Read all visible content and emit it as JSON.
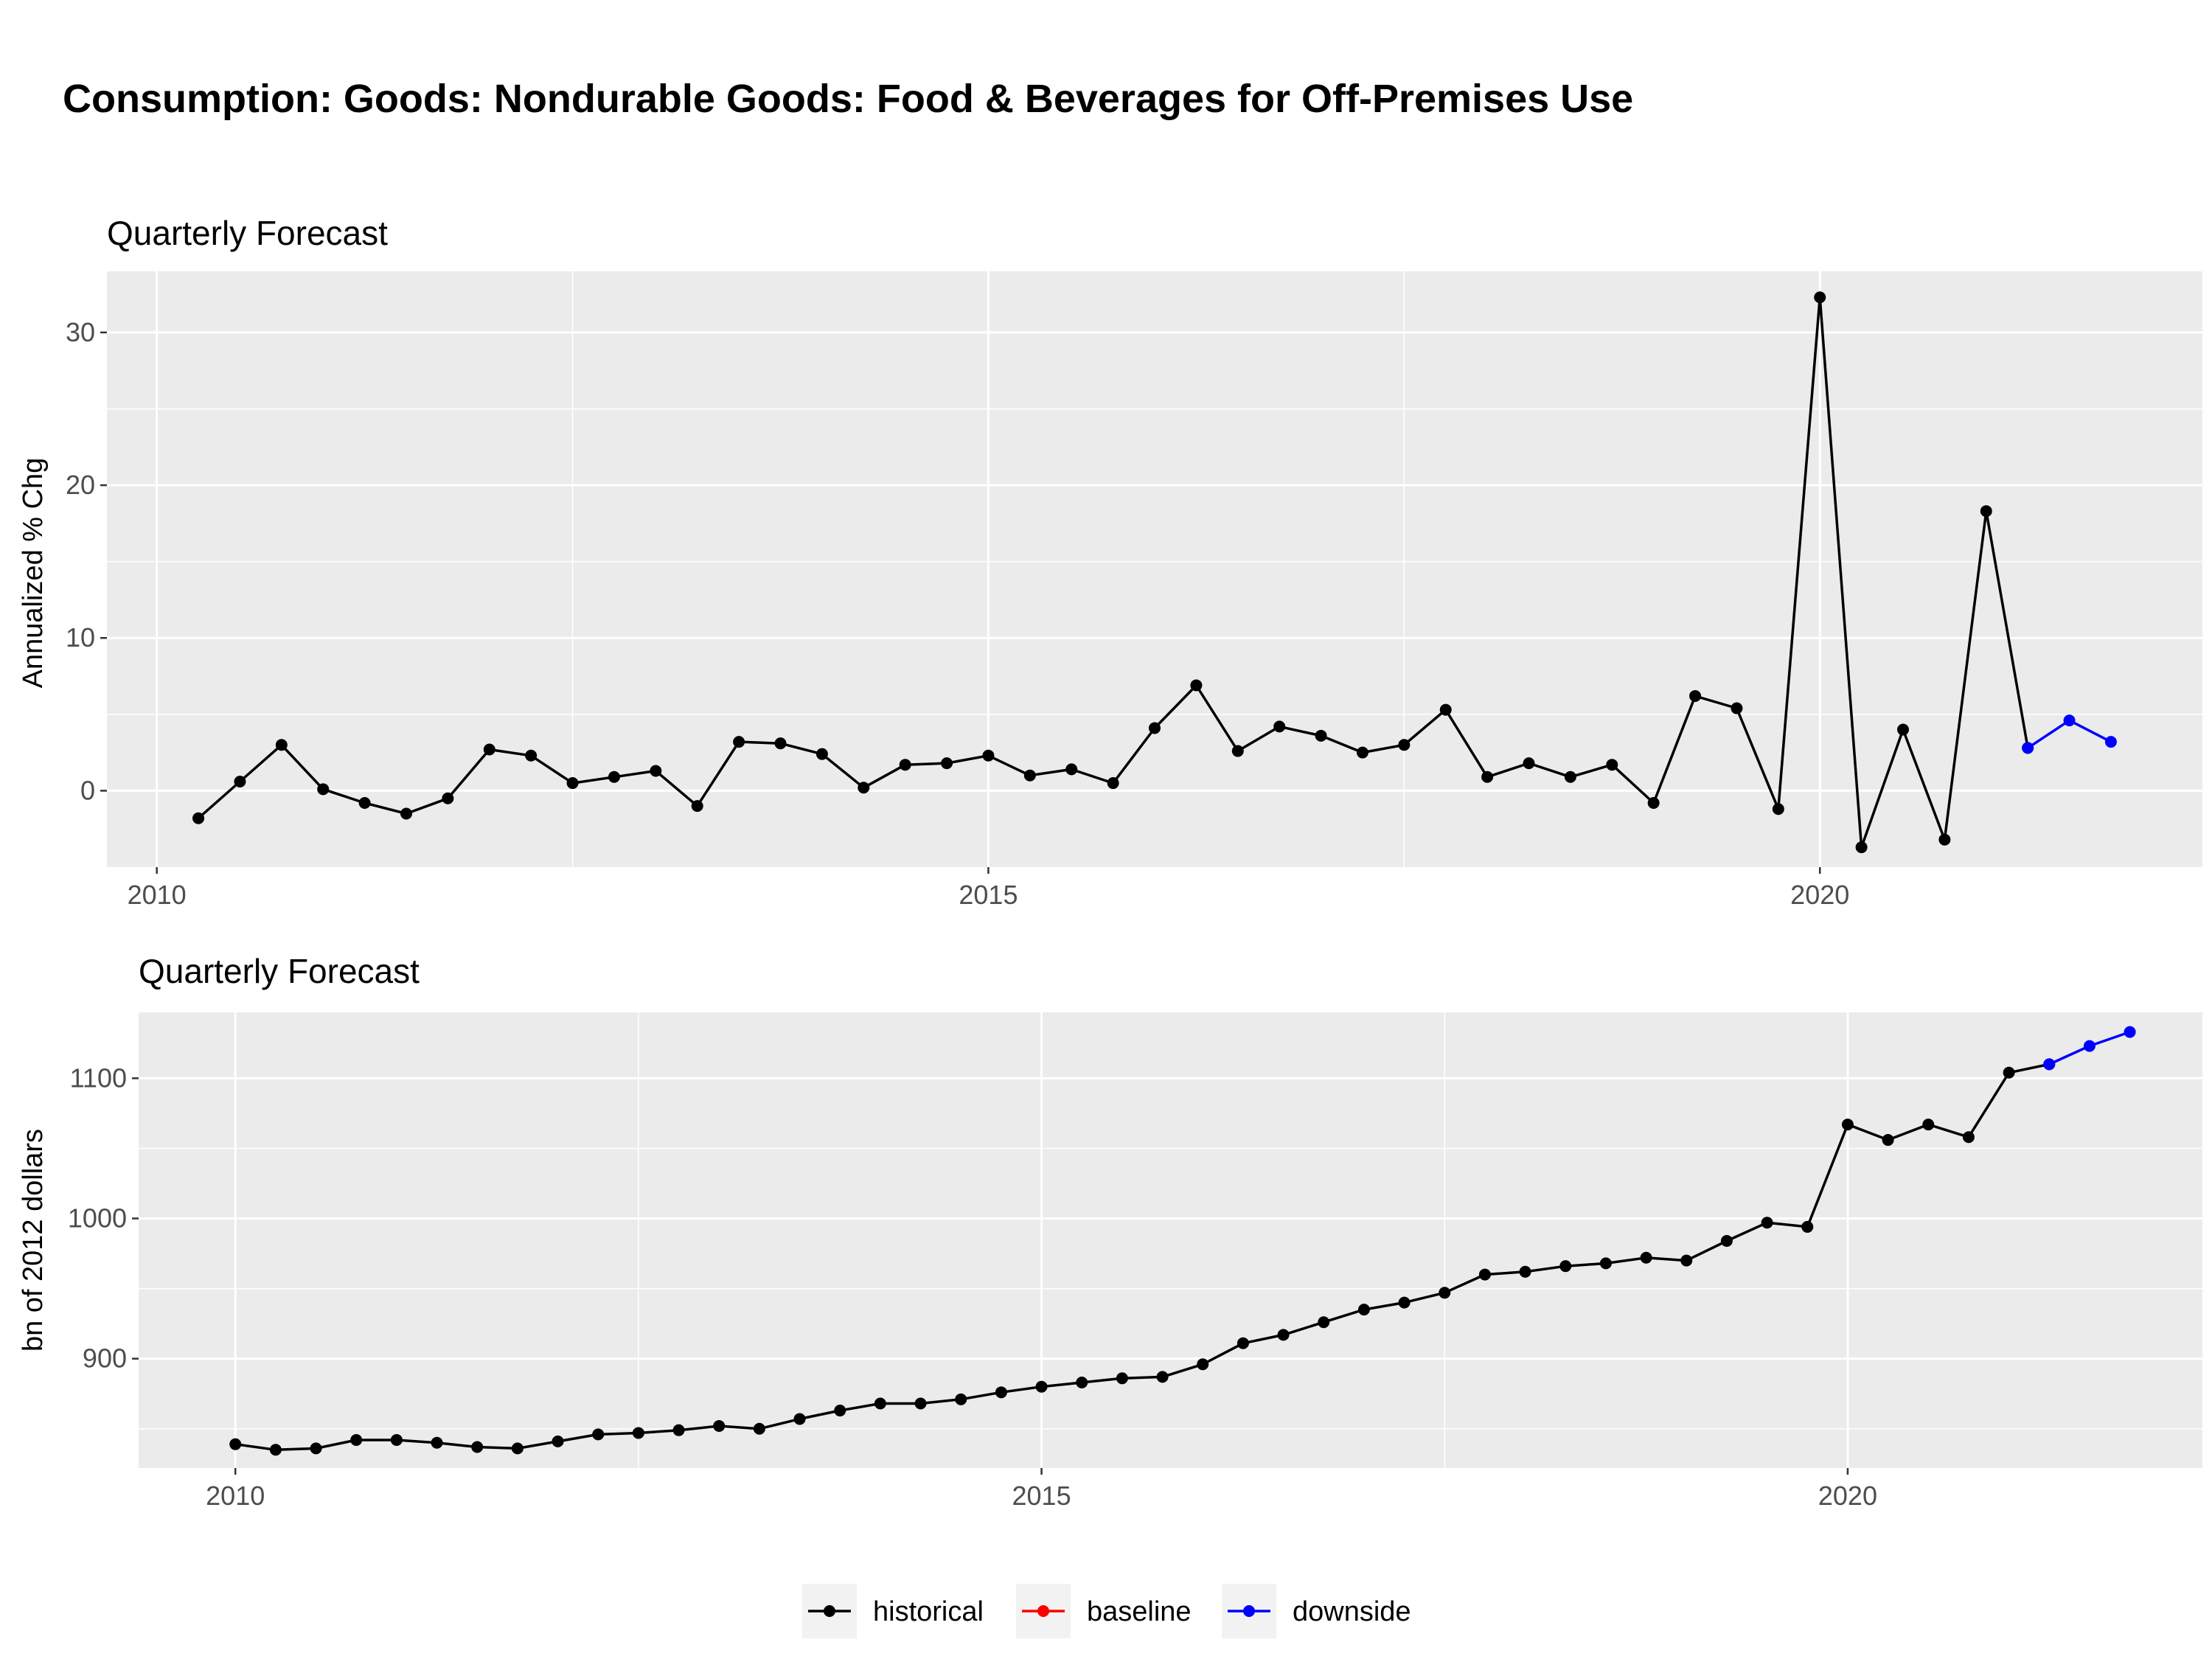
{
  "title": "Consumption: Goods: Nondurable Goods: Food & Beverages for Off-Premises Use",
  "legend": {
    "items": [
      {
        "label": "historical",
        "color": "#000000"
      },
      {
        "label": "baseline",
        "color": "#ff0000"
      },
      {
        "label": "downside",
        "color": "#0000ff"
      }
    ],
    "position": "bottom"
  },
  "chart_data": [
    {
      "type": "line",
      "subtitle": "Quarterly Forecast",
      "ylabel": "Annualized % Chg",
      "xlabel": "",
      "x_ticks": [
        2010,
        2015,
        2020
      ],
      "y_ticks": [
        0,
        10,
        20,
        30
      ],
      "xlim": [
        2009.7,
        2022.3
      ],
      "ylim": [
        -5,
        34
      ],
      "grid": true,
      "series": [
        {
          "name": "historical",
          "color": "#000000",
          "x": [
            2010.25,
            2010.5,
            2010.75,
            2011.0,
            2011.25,
            2011.5,
            2011.75,
            2012.0,
            2012.25,
            2012.5,
            2012.75,
            2013.0,
            2013.25,
            2013.5,
            2013.75,
            2014.0,
            2014.25,
            2014.5,
            2014.75,
            2015.0,
            2015.25,
            2015.5,
            2015.75,
            2016.0,
            2016.25,
            2016.5,
            2016.75,
            2017.0,
            2017.25,
            2017.5,
            2017.75,
            2018.0,
            2018.25,
            2018.5,
            2018.75,
            2019.0,
            2019.25,
            2019.5,
            2019.75,
            2020.0,
            2020.25,
            2020.5,
            2020.75,
            2021.0,
            2021.25
          ],
          "y": [
            -1.8,
            0.6,
            3.0,
            0.1,
            -0.8,
            -1.5,
            -0.5,
            2.7,
            2.3,
            0.5,
            0.9,
            1.3,
            -1.0,
            3.2,
            3.1,
            2.4,
            0.2,
            1.7,
            1.8,
            2.3,
            1.0,
            1.4,
            0.5,
            4.1,
            6.9,
            2.6,
            4.2,
            3.6,
            2.5,
            3.0,
            5.3,
            0.9,
            1.8,
            0.9,
            1.7,
            -0.8,
            6.2,
            5.4,
            -1.2,
            32.3,
            -3.7,
            4.0,
            -3.2,
            18.3,
            2.8
          ]
        },
        {
          "name": "downside",
          "color": "#0000ff",
          "x": [
            2021.25,
            2021.5,
            2021.75
          ],
          "y": [
            2.8,
            4.6,
            3.2
          ]
        }
      ]
    },
    {
      "type": "line",
      "subtitle": "Quarterly Forecast",
      "ylabel": "bn of 2012 dollars",
      "xlabel": "",
      "x_ticks": [
        2010,
        2015,
        2020
      ],
      "y_ticks": [
        900,
        1000,
        1100
      ],
      "xlim": [
        2009.4,
        2022.2
      ],
      "ylim": [
        822,
        1147
      ],
      "grid": true,
      "series": [
        {
          "name": "historical",
          "color": "#000000",
          "x": [
            2010.0,
            2010.25,
            2010.5,
            2010.75,
            2011.0,
            2011.25,
            2011.5,
            2011.75,
            2012.0,
            2012.25,
            2012.5,
            2012.75,
            2013.0,
            2013.25,
            2013.5,
            2013.75,
            2014.0,
            2014.25,
            2014.5,
            2014.75,
            2015.0,
            2015.25,
            2015.5,
            2015.75,
            2016.0,
            2016.25,
            2016.5,
            2016.75,
            2017.0,
            2017.25,
            2017.5,
            2017.75,
            2018.0,
            2018.25,
            2018.5,
            2018.75,
            2019.0,
            2019.25,
            2019.5,
            2019.75,
            2020.0,
            2020.25,
            2020.5,
            2020.75,
            2021.0,
            2021.25
          ],
          "y": [
            839,
            835,
            836,
            842,
            842,
            840,
            837,
            836,
            841,
            846,
            847,
            849,
            852,
            850,
            857,
            863,
            868,
            868,
            871,
            876,
            880,
            883,
            886,
            887,
            896,
            911,
            917,
            926,
            935,
            940,
            947,
            960,
            962,
            966,
            968,
            972,
            970,
            984,
            997,
            994,
            1067,
            1056,
            1067,
            1058,
            1104,
            1110
          ]
        },
        {
          "name": "downside",
          "color": "#0000ff",
          "x": [
            2021.25,
            2021.5,
            2021.75
          ],
          "y": [
            1110,
            1123,
            1133
          ]
        }
      ]
    }
  ]
}
